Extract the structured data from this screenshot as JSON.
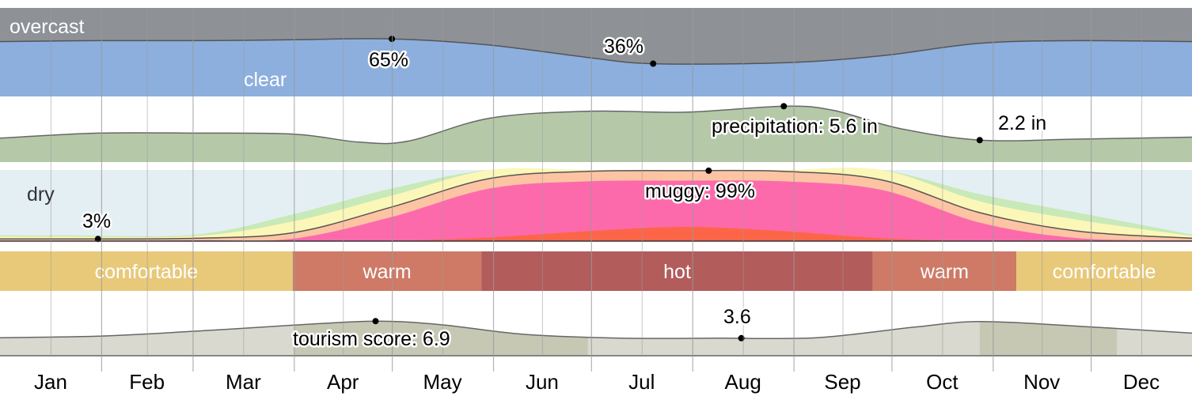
{
  "months": [
    "Jan",
    "Feb",
    "Mar",
    "Apr",
    "May",
    "Jun",
    "Jul",
    "Aug",
    "Sep",
    "Oct",
    "Nov",
    "Dec"
  ],
  "chart_data": [
    {
      "type": "area",
      "name": "cloud-cover",
      "unit": "%",
      "x_days": [
        0,
        30,
        60,
        90,
        120,
        150,
        180,
        200,
        240,
        270,
        300,
        330,
        365
      ],
      "series": [
        {
          "name": "clear",
          "values": [
            62,
            63,
            63,
            64,
            65,
            58,
            44,
            37,
            38,
            46,
            60,
            63,
            62
          ]
        }
      ],
      "labels": {
        "top": "overcast",
        "bottom": "clear",
        "max_label": "65%",
        "min_label": "36%"
      },
      "colors": {
        "overcast": "#8e9196",
        "band1": "#a5a9b1",
        "band2": "#bcc2cc",
        "band3": "#a8bde0",
        "clear": "#8cafde"
      }
    },
    {
      "type": "area",
      "name": "precipitation",
      "unit": "in",
      "x_days": [
        0,
        30,
        60,
        90,
        110,
        125,
        150,
        180,
        210,
        240,
        255,
        275,
        300,
        330,
        365
      ],
      "values": [
        2.4,
        2.9,
        2.9,
        2.8,
        2.0,
        2.1,
        4.4,
        5.1,
        5.0,
        5.6,
        5.2,
        3.4,
        2.2,
        2.3,
        2.5
      ],
      "ylim": [
        0,
        6.5
      ],
      "labels": {
        "max_label": "precipitation: 5.6 in",
        "min_label": "2.2 in"
      },
      "colors": {
        "fill": "#b5c9a9",
        "line": "#666666"
      }
    },
    {
      "type": "area",
      "name": "humidity-comfort",
      "unit": "%",
      "x_days": [
        0,
        20,
        60,
        90,
        120,
        150,
        180,
        210,
        240,
        270,
        300,
        330,
        365
      ],
      "series": [
        {
          "name": "muggy",
          "values": [
            3,
            3,
            4,
            12,
            48,
            88,
            98,
            99,
            98,
            86,
            40,
            14,
            4
          ]
        }
      ],
      "labels": {
        "top": "dry",
        "max_label": "muggy: 99%",
        "min_label": "3%"
      },
      "colors": {
        "dry": "#e4eff4",
        "green": "#c8e9b8",
        "yellow": "#fbf7b8",
        "orange": "#fdc4a4",
        "pink": "#fd6aab",
        "red": "#fd6548"
      }
    },
    {
      "type": "table",
      "name": "temperature-bands",
      "bands": [
        {
          "label": "comfortable",
          "start_day": 0,
          "end_day": 110,
          "color": "#e8c97a"
        },
        {
          "label": "warm",
          "start_day": 110,
          "end_day": 181,
          "color": "#ce7a66"
        },
        {
          "label": "hot",
          "start_day": 181,
          "end_day": 328,
          "color": "#b25c5c"
        },
        {
          "label": "warm",
          "start_day": 328,
          "end_day": 382,
          "color": "#ce7a66"
        },
        {
          "label": "comfortable",
          "start_day": 382,
          "end_day": 448,
          "color": "#e8c97a"
        }
      ]
    },
    {
      "type": "area",
      "name": "tourism-score",
      "unit": "",
      "x_days": [
        0,
        30,
        60,
        90,
        115,
        135,
        160,
        190,
        220,
        250,
        280,
        300,
        330,
        365
      ],
      "values": [
        3.6,
        3.9,
        4.9,
        6.1,
        6.9,
        6.2,
        4.3,
        3.5,
        3.5,
        3.6,
        5.7,
        6.8,
        5.9,
        4.5
      ],
      "ylim": [
        0,
        13
      ],
      "highlight_ranges": [
        [
          90,
          180
        ],
        [
          300,
          342
        ]
      ],
      "labels": {
        "max_label": "tourism score: 6.9",
        "min_label": "3.6"
      },
      "colors": {
        "fill": "#d9d9cf",
        "highlight": "#c6c8b4",
        "line": "#666666"
      }
    }
  ]
}
